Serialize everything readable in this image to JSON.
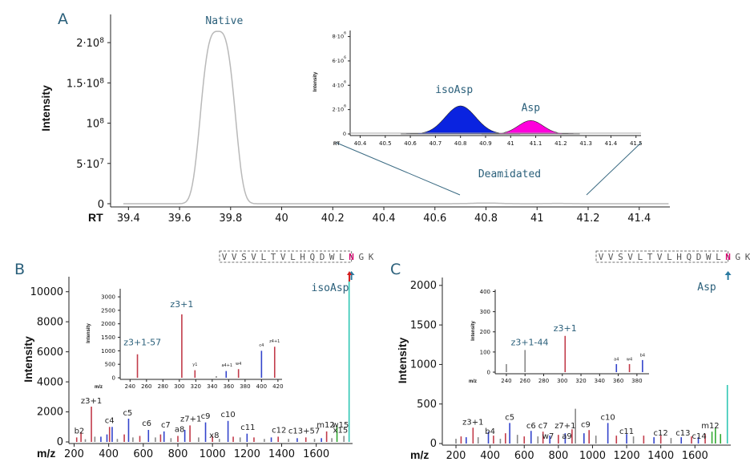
{
  "panels": {
    "a": "A",
    "b": "B",
    "c": "C"
  },
  "chart_data": [
    {
      "id": "A",
      "type": "line",
      "ylabel": "Intensity",
      "xlabel": "RT",
      "xlim": [
        39.33,
        41.52
      ],
      "ylim": [
        0,
        235000000.0
      ],
      "x_ticks": [
        "39.4",
        "39.6",
        "39.8",
        "40",
        "40.2",
        "40.4",
        "40.6",
        "40.8",
        "41",
        "41.2",
        "41.4"
      ],
      "y_ticks": [
        {
          "value": 0,
          "label": "0"
        },
        {
          "value": 50000000.0,
          "label": "5·10",
          "exp": "7"
        },
        {
          "value": 100000000.0,
          "label": "10",
          "exp": "8"
        },
        {
          "value": 150000000.0,
          "label": "1.5·10",
          "exp": "8"
        },
        {
          "value": 200000000.0,
          "label": "2·10",
          "exp": "8"
        }
      ],
      "peak": {
        "center": 39.75,
        "height": 214000000.0,
        "label": "Native"
      },
      "deamidated_label": "Deamidated"
    },
    {
      "id": "A-inset",
      "type": "area",
      "ylabel": "Intensity",
      "xlabel": "RT",
      "xlim": [
        40.36,
        41.52
      ],
      "ylim": [
        0,
        8500000.0
      ],
      "x_ticks": [
        "40.4",
        "40.5",
        "40.6",
        "40.7",
        "40.8",
        "40.9",
        "41",
        "41.1",
        "41.2",
        "41.3",
        "41.4",
        "41.5"
      ],
      "y_ticks": [
        {
          "value": 0,
          "label": "0"
        },
        {
          "value": 2000000.0,
          "label": "2·10",
          "exp": "6"
        },
        {
          "value": 4000000.0,
          "label": "4·10",
          "exp": "6"
        },
        {
          "value": 6000000.0,
          "label": "6·10",
          "exp": "6"
        },
        {
          "value": 8000000.0,
          "label": "8·10",
          "exp": "6"
        }
      ],
      "series": [
        {
          "name": "isoAsp",
          "color": "#0a23e0",
          "center": 40.8,
          "height": 2300000.0
        },
        {
          "name": "Asp",
          "color": "#ff00dc",
          "center": 41.08,
          "height": 1100000.0
        }
      ]
    },
    {
      "id": "B",
      "type": "bar",
      "ylabel": "Intensity",
      "xlabel": "m/z",
      "xlim": [
        170,
        1810
      ],
      "ylim": [
        0,
        11000
      ],
      "x_ticks": [
        200,
        400,
        600,
        800,
        1000,
        1200,
        1400,
        1600
      ],
      "y_ticks": [
        0,
        2000,
        4000,
        6000,
        8000,
        10000
      ],
      "peaks": [
        {
          "mz": 215,
          "v": 300,
          "c": "#c23b4a"
        },
        {
          "mz": 240,
          "v": 650,
          "c": "#c23b4a"
        },
        {
          "mz": 265,
          "v": 180,
          "c": "#888"
        },
        {
          "mz": 300,
          "v": 2350,
          "c": "#c23b4a"
        },
        {
          "mz": 320,
          "v": 350,
          "c": "#888"
        },
        {
          "mz": 355,
          "v": 350,
          "c": "#3344cc"
        },
        {
          "mz": 390,
          "v": 500,
          "c": "#3344cc"
        },
        {
          "mz": 405,
          "v": 1000,
          "c": "#c23b4a"
        },
        {
          "mz": 420,
          "v": 1000,
          "c": "#3344cc"
        },
        {
          "mz": 450,
          "v": 200,
          "c": "#888"
        },
        {
          "mz": 490,
          "v": 500,
          "c": "#c23b4a"
        },
        {
          "mz": 515,
          "v": 1550,
          "c": "#3344cc"
        },
        {
          "mz": 540,
          "v": 300,
          "c": "#888"
        },
        {
          "mz": 580,
          "v": 400,
          "c": "#c23b4a"
        },
        {
          "mz": 630,
          "v": 800,
          "c": "#3344cc"
        },
        {
          "mz": 670,
          "v": 300,
          "c": "#888"
        },
        {
          "mz": 700,
          "v": 500,
          "c": "#c23b4a"
        },
        {
          "mz": 720,
          "v": 700,
          "c": "#3344cc"
        },
        {
          "mz": 760,
          "v": 250,
          "c": "#888"
        },
        {
          "mz": 800,
          "v": 400,
          "c": "#c23b4a"
        },
        {
          "mz": 840,
          "v": 800,
          "c": "#3344cc"
        },
        {
          "mz": 870,
          "v": 1100,
          "c": "#c23b4a"
        },
        {
          "mz": 920,
          "v": 300,
          "c": "#888"
        },
        {
          "mz": 960,
          "v": 1300,
          "c": "#3344cc"
        },
        {
          "mz": 1000,
          "v": 400,
          "c": "#c23b4a"
        },
        {
          "mz": 1040,
          "v": 200,
          "c": "#888"
        },
        {
          "mz": 1090,
          "v": 1400,
          "c": "#3344cc"
        },
        {
          "mz": 1120,
          "v": 350,
          "c": "#c23b4a"
        },
        {
          "mz": 1160,
          "v": 300,
          "c": "#888"
        },
        {
          "mz": 1200,
          "v": 550,
          "c": "#3344cc"
        },
        {
          "mz": 1240,
          "v": 300,
          "c": "#c23b4a"
        },
        {
          "mz": 1300,
          "v": 200,
          "c": "#888"
        },
        {
          "mz": 1340,
          "v": 300,
          "c": "#3344cc"
        },
        {
          "mz": 1380,
          "v": 350,
          "c": "#c23b4a"
        },
        {
          "mz": 1440,
          "v": 200,
          "c": "#888"
        },
        {
          "mz": 1490,
          "v": 250,
          "c": "#3344cc"
        },
        {
          "mz": 1540,
          "v": 300,
          "c": "#c23b4a"
        },
        {
          "mz": 1590,
          "v": 200,
          "c": "#888"
        },
        {
          "mz": 1630,
          "v": 250,
          "c": "#3344cc"
        },
        {
          "mz": 1660,
          "v": 700,
          "c": "#c23b4a"
        },
        {
          "mz": 1690,
          "v": 250,
          "c": "#888"
        },
        {
          "mz": 1720,
          "v": 1100,
          "c": "#33aa33"
        },
        {
          "mz": 1760,
          "v": 400,
          "c": "#888"
        },
        {
          "mz": 1790,
          "v": 10800,
          "c": "#30c7b5"
        }
      ],
      "labels": [
        {
          "mz": 230,
          "v": 450,
          "text": "b2"
        },
        {
          "mz": 300,
          "v": 2450,
          "text": "z3+1"
        },
        {
          "mz": 405,
          "v": 1150,
          "text": "c4"
        },
        {
          "mz": 510,
          "v": 1650,
          "text": "c5"
        },
        {
          "mz": 620,
          "v": 950,
          "text": "c6"
        },
        {
          "mz": 730,
          "v": 850,
          "text": "c7"
        },
        {
          "mz": 810,
          "v": 550,
          "text": "a8"
        },
        {
          "mz": 875,
          "v": 1250,
          "text": "z7+1"
        },
        {
          "mz": 960,
          "v": 1450,
          "text": "c9"
        },
        {
          "mz": 1010,
          "v": 150,
          "text": "x8"
        },
        {
          "mz": 1090,
          "v": 1550,
          "text": "c10"
        },
        {
          "mz": 1205,
          "v": 700,
          "text": "c11"
        },
        {
          "mz": 1385,
          "v": 500,
          "text": "c12"
        },
        {
          "mz": 1530,
          "v": 450,
          "text": "c13+57"
        },
        {
          "mz": 1655,
          "v": 850,
          "text": "m12"
        },
        {
          "mz": 1740,
          "v": 850,
          "text": "w15"
        },
        {
          "mz": 1740,
          "v": 500,
          "text": "x15"
        }
      ],
      "annotation": "isoAsp",
      "sequence": [
        "V",
        "V",
        "S",
        "V",
        "L",
        "T",
        "V",
        "L",
        "H",
        "Q",
        "D",
        "W",
        "L",
        "N",
        "G",
        "K"
      ]
    },
    {
      "id": "B-inset",
      "type": "bar",
      "ylabel": "Intensity",
      "xlabel": "m/z",
      "xlim": [
        228,
        425
      ],
      "ylim": [
        0,
        3300
      ],
      "x_ticks": [
        240,
        260,
        280,
        300,
        320,
        340,
        360,
        380,
        400,
        420
      ],
      "y_ticks": [
        0,
        500,
        1000,
        1500,
        2000,
        2500,
        3000
      ],
      "peaks": [
        {
          "mz": 249,
          "v": 870,
          "c": "#c23b4a"
        },
        {
          "mz": 303,
          "v": 2350,
          "c": "#c23b4a"
        },
        {
          "mz": 319,
          "v": 280,
          "c": "#c23b4a"
        },
        {
          "mz": 345,
          "v": 60,
          "c": "#888"
        },
        {
          "mz": 357,
          "v": 250,
          "c": "#3344cc"
        },
        {
          "mz": 372,
          "v": 320,
          "c": "#c23b4a"
        },
        {
          "mz": 400,
          "v": 1000,
          "c": "#3344cc"
        },
        {
          "mz": 416,
          "v": 1150,
          "c": "#c23b4a"
        }
      ],
      "labels": [
        {
          "mz": 255,
          "v": 1150,
          "text": "z3+1-57",
          "big": true
        },
        {
          "mz": 303,
          "v": 2550,
          "text": "z3+1",
          "big": true
        },
        {
          "mz": 319,
          "v": 380,
          "text": "y1"
        },
        {
          "mz": 358,
          "v": 360,
          "text": "a4+1"
        },
        {
          "mz": 372,
          "v": 420,
          "text": "w4"
        },
        {
          "mz": 400,
          "v": 1100,
          "text": "c4"
        },
        {
          "mz": 416,
          "v": 1250,
          "text": "z4+1"
        }
      ]
    },
    {
      "id": "C",
      "type": "bar",
      "ylabel": "Intensity",
      "xlabel": "m/z",
      "xlim": [
        120,
        1810
      ],
      "ylim": [
        0,
        2100
      ],
      "x_ticks": [
        200,
        400,
        600,
        800,
        1000,
        1200,
        1400,
        1600
      ],
      "y_ticks": [
        0,
        500,
        1000,
        1500,
        2000
      ],
      "peaks": [
        {
          "mz": 200,
          "v": 60,
          "c": "#888"
        },
        {
          "mz": 230,
          "v": 90,
          "c": "#c23b4a"
        },
        {
          "mz": 260,
          "v": 80,
          "c": "#3344cc"
        },
        {
          "mz": 300,
          "v": 200,
          "c": "#c23b4a"
        },
        {
          "mz": 330,
          "v": 80,
          "c": "#888"
        },
        {
          "mz": 390,
          "v": 150,
          "c": "#3344cc"
        },
        {
          "mz": 420,
          "v": 100,
          "c": "#c23b4a"
        },
        {
          "mz": 460,
          "v": 60,
          "c": "#888"
        },
        {
          "mz": 490,
          "v": 130,
          "c": "#c23b4a"
        },
        {
          "mz": 515,
          "v": 260,
          "c": "#3344cc"
        },
        {
          "mz": 560,
          "v": 110,
          "c": "#888"
        },
        {
          "mz": 600,
          "v": 90,
          "c": "#c23b4a"
        },
        {
          "mz": 640,
          "v": 160,
          "c": "#3344cc"
        },
        {
          "mz": 680,
          "v": 90,
          "c": "#888"
        },
        {
          "mz": 710,
          "v": 150,
          "c": "#c23b4a"
        },
        {
          "mz": 750,
          "v": 100,
          "c": "#3344cc"
        },
        {
          "mz": 800,
          "v": 110,
          "c": "#c23b4a"
        },
        {
          "mz": 840,
          "v": 130,
          "c": "#3344cc"
        },
        {
          "mz": 880,
          "v": 180,
          "c": "#c23b4a"
        },
        {
          "mz": 900,
          "v": 440,
          "c": "#888"
        },
        {
          "mz": 950,
          "v": 130,
          "c": "#3344cc"
        },
        {
          "mz": 980,
          "v": 170,
          "c": "#c23b4a"
        },
        {
          "mz": 1020,
          "v": 100,
          "c": "#888"
        },
        {
          "mz": 1090,
          "v": 260,
          "c": "#3344cc"
        },
        {
          "mz": 1140,
          "v": 100,
          "c": "#c23b4a"
        },
        {
          "mz": 1200,
          "v": 120,
          "c": "#3344cc"
        },
        {
          "mz": 1240,
          "v": 90,
          "c": "#888"
        },
        {
          "mz": 1300,
          "v": 100,
          "c": "#c23b4a"
        },
        {
          "mz": 1360,
          "v": 80,
          "c": "#3344cc"
        },
        {
          "mz": 1400,
          "v": 100,
          "c": "#c23b4a"
        },
        {
          "mz": 1460,
          "v": 70,
          "c": "#888"
        },
        {
          "mz": 1520,
          "v": 80,
          "c": "#3344cc"
        },
        {
          "mz": 1580,
          "v": 90,
          "c": "#c23b4a"
        },
        {
          "mz": 1620,
          "v": 80,
          "c": "#3344cc"
        },
        {
          "mz": 1660,
          "v": 120,
          "c": "#c23b4a"
        },
        {
          "mz": 1700,
          "v": 150,
          "c": "#33aa33"
        },
        {
          "mz": 1720,
          "v": 200,
          "c": "#33aa33"
        },
        {
          "mz": 1750,
          "v": 120,
          "c": "#33aa33"
        },
        {
          "mz": 1790,
          "v": 740,
          "c": "#30c7b5"
        }
      ],
      "labels": [
        {
          "mz": 300,
          "v": 220,
          "text": "z3+1"
        },
        {
          "mz": 400,
          "v": 100,
          "text": "b4"
        },
        {
          "mz": 515,
          "v": 280,
          "text": "c5"
        },
        {
          "mz": 640,
          "v": 170,
          "text": "c6"
        },
        {
          "mz": 710,
          "v": 170,
          "text": "c7"
        },
        {
          "mz": 740,
          "v": 40,
          "text": "w7"
        },
        {
          "mz": 840,
          "v": 170,
          "text": "z7+1"
        },
        {
          "mz": 850,
          "v": 40,
          "text": "a9"
        },
        {
          "mz": 960,
          "v": 190,
          "text": "c9"
        },
        {
          "mz": 1090,
          "v": 280,
          "text": "c10"
        },
        {
          "mz": 1200,
          "v": 100,
          "text": "c11"
        },
        {
          "mz": 1400,
          "v": 80,
          "text": "c12"
        },
        {
          "mz": 1530,
          "v": 80,
          "text": "c13"
        },
        {
          "mz": 1625,
          "v": 40,
          "text": "c14"
        },
        {
          "mz": 1690,
          "v": 170,
          "text": "m12"
        }
      ],
      "annotation": "Asp",
      "sequence": [
        "V",
        "V",
        "S",
        "V",
        "L",
        "T",
        "V",
        "L",
        "H",
        "Q",
        "D",
        "W",
        "L",
        "N",
        "G",
        "K"
      ]
    },
    {
      "id": "C-inset",
      "type": "bar",
      "ylabel": "Intensity",
      "xlabel": "m/z",
      "xlim": [
        228,
        393
      ],
      "ylim": [
        0,
        410
      ],
      "x_ticks": [
        240,
        260,
        280,
        300,
        320,
        340,
        360,
        380
      ],
      "y_ticks": [
        0,
        100,
        200,
        300,
        400
      ],
      "peaks": [
        {
          "mz": 240,
          "v": 40,
          "c": "#888"
        },
        {
          "mz": 260,
          "v": 110,
          "c": "#888"
        },
        {
          "mz": 303,
          "v": 180,
          "c": "#c23b4a"
        },
        {
          "mz": 358,
          "v": 40,
          "c": "#3344cc"
        },
        {
          "mz": 372,
          "v": 40,
          "c": "#c23b4a"
        },
        {
          "mz": 386,
          "v": 60,
          "c": "#3344cc"
        }
      ],
      "labels": [
        {
          "mz": 265,
          "v": 125,
          "text": "z3+1-44",
          "big": true
        },
        {
          "mz": 303,
          "v": 195,
          "text": "z3+1",
          "big": true
        },
        {
          "mz": 358,
          "v": 50,
          "text": "a4"
        },
        {
          "mz": 372,
          "v": 50,
          "text": "w4"
        },
        {
          "mz": 386,
          "v": 70,
          "text": "b4"
        }
      ]
    }
  ]
}
